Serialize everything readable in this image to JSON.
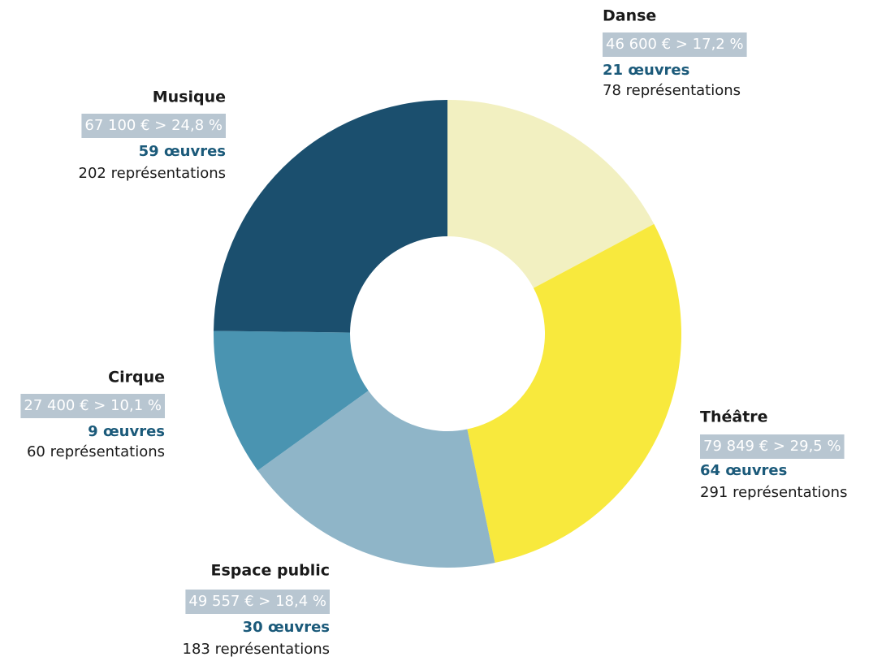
{
  "chart_data": {
    "type": "donut",
    "categories": [
      "Danse",
      "Théâtre",
      "Espace public",
      "Cirque",
      "Musique"
    ],
    "values": [
      46600,
      79849,
      49557,
      27400,
      67100
    ],
    "value_labels": [
      "46 600 € > 17,2 %",
      "79 849 € > 29,5 %",
      "49 557 € > 18,4 %",
      "27 400 € > 10,1 %",
      "67 100 € > 24,8 %"
    ],
    "colors": [
      "#f2f0c1",
      "#f8e93d",
      "#8fb5c8",
      "#4a94b1",
      "#1b4f6e"
    ],
    "details": [
      {
        "works": "21 œuvres",
        "performances": "78 représentations"
      },
      {
        "works": "64 œuvres",
        "performances": "291 représentations"
      },
      {
        "works": "30 œuvres",
        "performances": "183 représentations"
      },
      {
        "works": "9 œuvres",
        "performances": "60 représentations"
      },
      {
        "works": "59 œuvres",
        "performances": "202 représentations"
      }
    ]
  }
}
